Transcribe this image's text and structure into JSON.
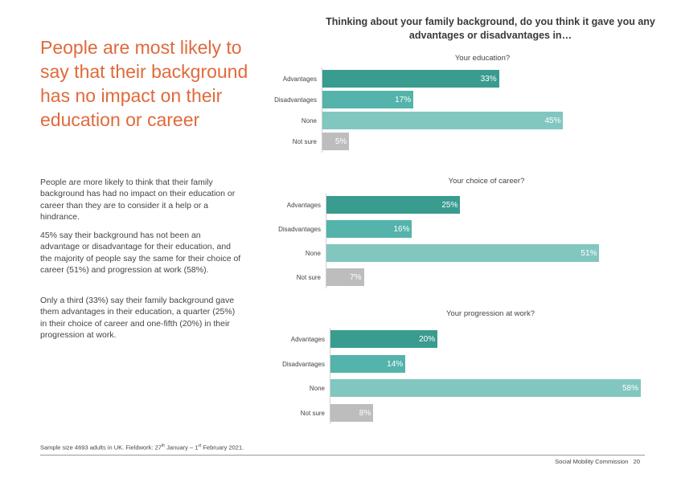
{
  "headline": "People are most likely to say that their background has no impact on their education or career",
  "paragraphs": [
    "People are more likely to think that their family background has had no impact on their education or career than they are to consider it a help or a hindrance.",
    "45% say their background has not been an advantage or disadvantage for their education, and the majority of people say the same for their choice of career (51%) and progression at work (58%).",
    "Only a third (33%) say their family background gave them advantages in their education, a quarter (25%) in their choice of career and one-fifth (20%) in their progression at work."
  ],
  "footnote": {
    "prefix": "Sample size 4693 adults in UK. Fieldwork: 27",
    "sup1": "th",
    "middle": " January – 1",
    "sup2": "st",
    "suffix": " February 2021."
  },
  "footer": {
    "org": "Social Mobility Commission",
    "page": "20"
  },
  "colors": {
    "headline": "#e06a3b",
    "Advantages": "#3a9b8f",
    "Disadvantages": "#54b3ab",
    "None": "#82c6c0",
    "Not sure": "#bdbdbd"
  },
  "chart_data": {
    "type": "bar",
    "orientation": "horizontal",
    "title": "Thinking about your family background, do you think it gave you any advantages or disadvantages in…",
    "categories": [
      "Advantages",
      "Disadvantages",
      "None",
      "Not sure"
    ],
    "value_suffix": "%",
    "xlim": [
      0,
      58
    ],
    "grid": false,
    "legend": "none",
    "panels": [
      {
        "title": "Your education?",
        "values": [
          33,
          17,
          45,
          5
        ]
      },
      {
        "title": "Your choice of career?",
        "values": [
          25,
          16,
          51,
          7
        ]
      },
      {
        "title": "Your progression at work?",
        "values": [
          20,
          14,
          58,
          8
        ]
      }
    ]
  }
}
